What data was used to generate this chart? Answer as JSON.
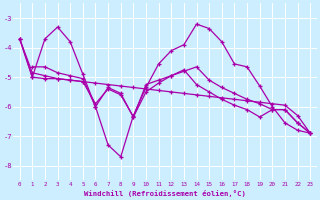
{
  "xlabel": "Windchill (Refroidissement éolien,°C)",
  "bg_color": "#cceeff",
  "line_color": "#aa00aa",
  "grid_color": "#ffffff",
  "xlim": [
    -0.5,
    23.5
  ],
  "ylim": [
    -8.5,
    -2.5
  ],
  "yticks": [
    -8,
    -7,
    -6,
    -5,
    -4,
    -3
  ],
  "xticks": [
    0,
    1,
    2,
    3,
    4,
    5,
    6,
    7,
    8,
    9,
    10,
    11,
    12,
    13,
    14,
    15,
    16,
    17,
    18,
    19,
    20,
    21,
    22,
    23
  ],
  "series": [
    {
      "x": [
        0,
        1,
        2,
        3,
        4,
        5,
        6,
        7,
        8,
        9,
        10,
        11,
        12,
        13,
        14,
        15,
        16,
        17,
        18,
        19,
        20,
        21,
        22,
        23
      ],
      "y": [
        -3.7,
        -5.0,
        -3.7,
        -3.3,
        -3.8,
        -4.9,
        -6.0,
        -7.3,
        -7.7,
        -6.3,
        -5.35,
        -4.55,
        -4.1,
        -3.9,
        -3.2,
        -3.35,
        -3.8,
        -4.55,
        -4.65,
        -5.3,
        -6.0,
        -6.55,
        -6.8,
        -6.9
      ]
    },
    {
      "x": [
        0,
        1,
        2,
        3,
        4,
        5,
        6,
        7,
        8,
        9,
        10,
        11,
        12,
        13,
        14,
        15,
        16,
        17,
        18,
        19,
        20,
        21,
        22,
        23
      ],
      "y": [
        -3.7,
        -4.85,
        -4.95,
        -5.05,
        -5.1,
        -5.15,
        -5.2,
        -5.25,
        -5.3,
        -5.35,
        -5.4,
        -5.45,
        -5.5,
        -5.55,
        -5.6,
        -5.65,
        -5.7,
        -5.75,
        -5.8,
        -5.85,
        -5.9,
        -5.95,
        -6.3,
        -6.9
      ]
    },
    {
      "x": [
        1,
        2,
        3,
        4,
        5,
        6,
        7,
        8,
        9,
        10,
        11,
        12,
        13,
        14,
        15,
        16,
        17,
        18,
        19,
        20,
        21,
        22,
        23
      ],
      "y": [
        -4.65,
        -4.65,
        -4.85,
        -4.95,
        -5.05,
        -6.0,
        -5.35,
        -5.55,
        -6.35,
        -5.25,
        -5.1,
        -4.95,
        -4.8,
        -4.65,
        -5.1,
        -5.35,
        -5.55,
        -5.75,
        -5.9,
        -6.1,
        -6.1,
        -6.55,
        -6.9
      ]
    },
    {
      "x": [
        0,
        1,
        2,
        3,
        4,
        5,
        6,
        7,
        8,
        9,
        10,
        11,
        12,
        13,
        14,
        15,
        16,
        17,
        18,
        19,
        20,
        21,
        22,
        23
      ],
      "y": [
        -3.7,
        -5.0,
        -5.05,
        -5.05,
        -5.1,
        -5.15,
        -5.9,
        -5.4,
        -5.6,
        -6.35,
        -5.5,
        -5.2,
        -4.95,
        -4.75,
        -5.25,
        -5.5,
        -5.75,
        -5.95,
        -6.1,
        -6.35,
        -6.1,
        -6.1,
        -6.55,
        -6.9
      ]
    }
  ]
}
